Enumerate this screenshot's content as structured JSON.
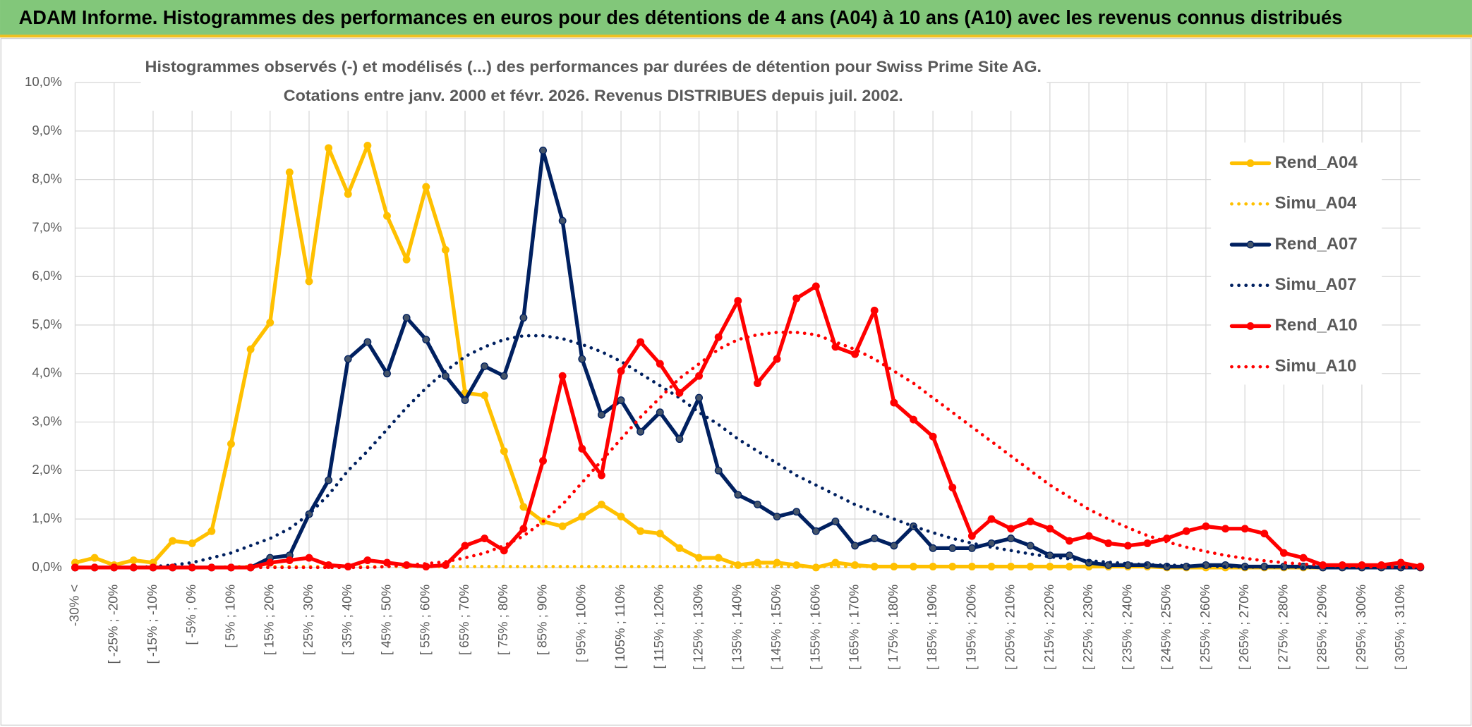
{
  "title": "ADAM Informe. Histogrammes des performances en euros pour des détentions de 4 ans (A04) à 10 ans (A10) avec les revenus connus distribués",
  "chart_data": {
    "type": "line",
    "subtitle": [
      "Histogrammes observés (-) et modélisés (...) des performances par durées de détention pour Swiss Prime Site AG.",
      "Cotations entre janv. 2000 et févr. 2026. Revenus DISTRIBUES depuis juil. 2002."
    ],
    "categories": [
      "-30% <",
      null,
      "[ -25% ; -20%",
      null,
      "[ -15% ; -10%",
      null,
      "[ -5% ; 0%",
      null,
      "[ 5% ; 10%",
      null,
      "[ 15% ; 20%",
      null,
      "[ 25% ; 30%",
      null,
      "[ 35% ; 40%",
      null,
      "[ 45% ; 50%",
      null,
      "[ 55% ; 60%",
      null,
      "[ 65% ; 70%",
      null,
      "[ 75% ; 80%",
      null,
      "[ 85% ; 90%",
      null,
      "[ 95% ; 100%",
      null,
      "[ 105% ; 110%",
      null,
      "[ 115% ; 120%",
      null,
      "[ 125% ; 130%",
      null,
      "[ 135% ; 140%",
      null,
      "[ 145% ; 150%",
      null,
      "[ 155% ; 160%",
      null,
      "[ 165% ; 170%",
      null,
      "[ 175% ; 180%",
      null,
      "[ 185% ; 190%",
      null,
      "[ 195% ; 200%",
      null,
      "[ 205% ; 210%",
      null,
      "[ 215% ; 220%",
      null,
      "[ 225% ; 230%",
      null,
      "[ 235% ; 240%",
      null,
      "[ 245% ; 250%",
      null,
      "[ 255% ; 260%",
      null,
      "[ 265% ; 270%",
      null,
      "[ 275% ; 280%",
      null,
      "[ 285% ; 290%",
      null,
      "[ 295% ; 300%",
      null,
      "[ 305% ; 310%",
      null
    ],
    "series": [
      {
        "name": "Rend_A04",
        "color": "#ffc000",
        "line_style": "solid",
        "markers": true,
        "values": [
          0.1,
          0.2,
          0.05,
          0.15,
          0.1,
          0.55,
          0.5,
          0.75,
          2.55,
          4.5,
          5.05,
          8.15,
          5.9,
          8.65,
          7.7,
          8.7,
          7.25,
          6.35,
          7.85,
          6.55,
          3.6,
          3.55,
          2.4,
          1.25,
          0.95,
          0.85,
          1.05,
          1.3,
          1.05,
          0.75,
          0.7,
          0.4,
          0.2,
          0.2,
          0.05,
          0.1,
          0.1,
          0.05,
          0,
          0.1,
          0.05,
          0.02,
          0.02,
          0.02,
          0.02,
          0.02,
          0.02,
          0.02,
          0.02,
          0.02,
          0.02,
          0.02,
          0.02,
          0.02,
          0.02,
          0.02,
          0,
          0,
          0,
          0,
          0,
          0,
          0,
          0,
          0,
          0,
          0,
          0,
          0,
          0
        ]
      },
      {
        "name": "Simu_A04",
        "color": "#ffc000",
        "line_style": "dotted",
        "markers": false,
        "values": [
          0,
          0,
          0,
          0,
          0,
          0,
          0,
          0,
          0.02,
          0.02,
          0.02,
          0.02,
          0.02,
          0.02,
          0.02,
          0.02,
          0.02,
          0.02,
          0.02,
          0.02,
          0.02,
          0.02,
          0.02,
          0.02,
          0.02,
          0.02,
          0.02,
          0.02,
          0.02,
          0.02,
          0.02,
          0.02,
          0.02,
          0.02,
          0.02,
          0.02,
          0.02,
          0.02,
          0.02,
          0.02,
          0.02,
          0.02,
          0.02,
          0.02,
          0.02,
          0.02,
          0.02,
          0.02,
          0.02,
          0.02,
          0.02,
          0.02,
          0.02,
          0.02,
          0.02,
          0.02,
          0.02,
          0.02,
          0.02,
          0.02,
          0.02,
          0,
          0,
          0,
          0,
          0,
          0,
          0,
          0,
          0
        ]
      },
      {
        "name": "Rend_A07",
        "color": "#002060",
        "line_style": "solid",
        "markers": true,
        "values": [
          0,
          0,
          0,
          0,
          0,
          0,
          0,
          0,
          0,
          0,
          0.2,
          0.25,
          1.1,
          1.8,
          4.3,
          4.65,
          4.0,
          5.15,
          4.7,
          3.95,
          3.45,
          4.15,
          3.95,
          5.15,
          8.6,
          7.15,
          4.3,
          3.15,
          3.45,
          2.8,
          3.2,
          2.65,
          3.5,
          2.0,
          1.5,
          1.3,
          1.05,
          1.15,
          0.75,
          0.95,
          0.45,
          0.6,
          0.45,
          0.85,
          0.4,
          0.4,
          0.4,
          0.5,
          0.6,
          0.45,
          0.25,
          0.25,
          0.1,
          0.05,
          0.05,
          0.05,
          0.02,
          0.02,
          0.05,
          0.05,
          0.02,
          0.02,
          0.02,
          0.02,
          0,
          0,
          0,
          0,
          0,
          0
        ]
      },
      {
        "name": "Simu_A07",
        "color": "#002060",
        "line_style": "dotted",
        "markers": false,
        "values": [
          0,
          0,
          0,
          0,
          0.02,
          0.05,
          0.1,
          0.2,
          0.3,
          0.45,
          0.6,
          0.8,
          1.1,
          1.5,
          2.0,
          2.4,
          2.85,
          3.3,
          3.7,
          4.05,
          4.35,
          4.55,
          4.7,
          4.78,
          4.78,
          4.72,
          4.6,
          4.45,
          4.25,
          4.0,
          3.75,
          3.5,
          3.2,
          2.95,
          2.65,
          2.4,
          2.15,
          1.9,
          1.7,
          1.5,
          1.3,
          1.15,
          1.0,
          0.85,
          0.72,
          0.6,
          0.5,
          0.42,
          0.35,
          0.28,
          0.22,
          0.18,
          0.14,
          0.11,
          0.08,
          0.06,
          0.05,
          0.04,
          0.03,
          0.02,
          0.01,
          0.01,
          0.01,
          0,
          0,
          0,
          0,
          0,
          0,
          0
        ]
      },
      {
        "name": "Rend_A10",
        "color": "#ff0000",
        "line_style": "solid",
        "markers": true,
        "values": [
          0,
          0,
          0,
          0,
          0,
          0,
          0,
          0,
          0,
          0,
          0.1,
          0.15,
          0.2,
          0.05,
          0.02,
          0.15,
          0.1,
          0.05,
          0.02,
          0.05,
          0.45,
          0.6,
          0.35,
          0.8,
          2.2,
          3.95,
          2.45,
          1.9,
          4.05,
          4.65,
          4.2,
          3.6,
          3.95,
          4.75,
          5.5,
          3.8,
          4.3,
          5.55,
          5.8,
          4.55,
          4.4,
          5.3,
          3.4,
          3.05,
          2.7,
          1.65,
          0.65,
          1.0,
          0.8,
          0.95,
          0.8,
          0.55,
          0.65,
          0.5,
          0.45,
          0.5,
          0.6,
          0.75,
          0.85,
          0.8,
          0.8,
          0.7,
          0.3,
          0.2,
          0.05,
          0.05,
          0.05,
          0.05,
          0.1,
          0.02
        ]
      },
      {
        "name": "Simu_A10",
        "color": "#ff0000",
        "line_style": "dotted",
        "markers": false,
        "values": [
          0,
          0,
          0,
          0,
          0,
          0,
          0,
          0,
          0,
          0,
          0,
          0,
          0,
          0,
          0,
          0,
          0.02,
          0.05,
          0.08,
          0.12,
          0.2,
          0.3,
          0.45,
          0.65,
          0.95,
          1.3,
          1.75,
          2.2,
          2.65,
          3.1,
          3.5,
          3.9,
          4.2,
          4.5,
          4.7,
          4.8,
          4.85,
          4.85,
          4.8,
          4.65,
          4.5,
          4.3,
          4.05,
          3.8,
          3.5,
          3.2,
          2.9,
          2.6,
          2.3,
          2.0,
          1.7,
          1.45,
          1.2,
          1.0,
          0.82,
          0.66,
          0.53,
          0.42,
          0.33,
          0.25,
          0.19,
          0.14,
          0.1,
          0.07,
          0.05,
          0.03,
          0.02,
          0.01,
          0.01,
          0
        ]
      }
    ],
    "ylim": [
      0,
      10
    ],
    "yticks": [
      {
        "value": 0,
        "label": "0,0%"
      },
      {
        "value": 1,
        "label": "1,0%"
      },
      {
        "value": 2,
        "label": "2,0%"
      },
      {
        "value": 3,
        "label": "3,0%"
      },
      {
        "value": 4,
        "label": "4,0%"
      },
      {
        "value": 5,
        "label": "5,0%"
      },
      {
        "value": 6,
        "label": "6,0%"
      },
      {
        "value": 7,
        "label": "7,0%"
      },
      {
        "value": 8,
        "label": "8,0%"
      },
      {
        "value": 9,
        "label": "9,0%"
      },
      {
        "value": 10,
        "label": "10,0%"
      }
    ],
    "grid": true,
    "legend": "right"
  }
}
